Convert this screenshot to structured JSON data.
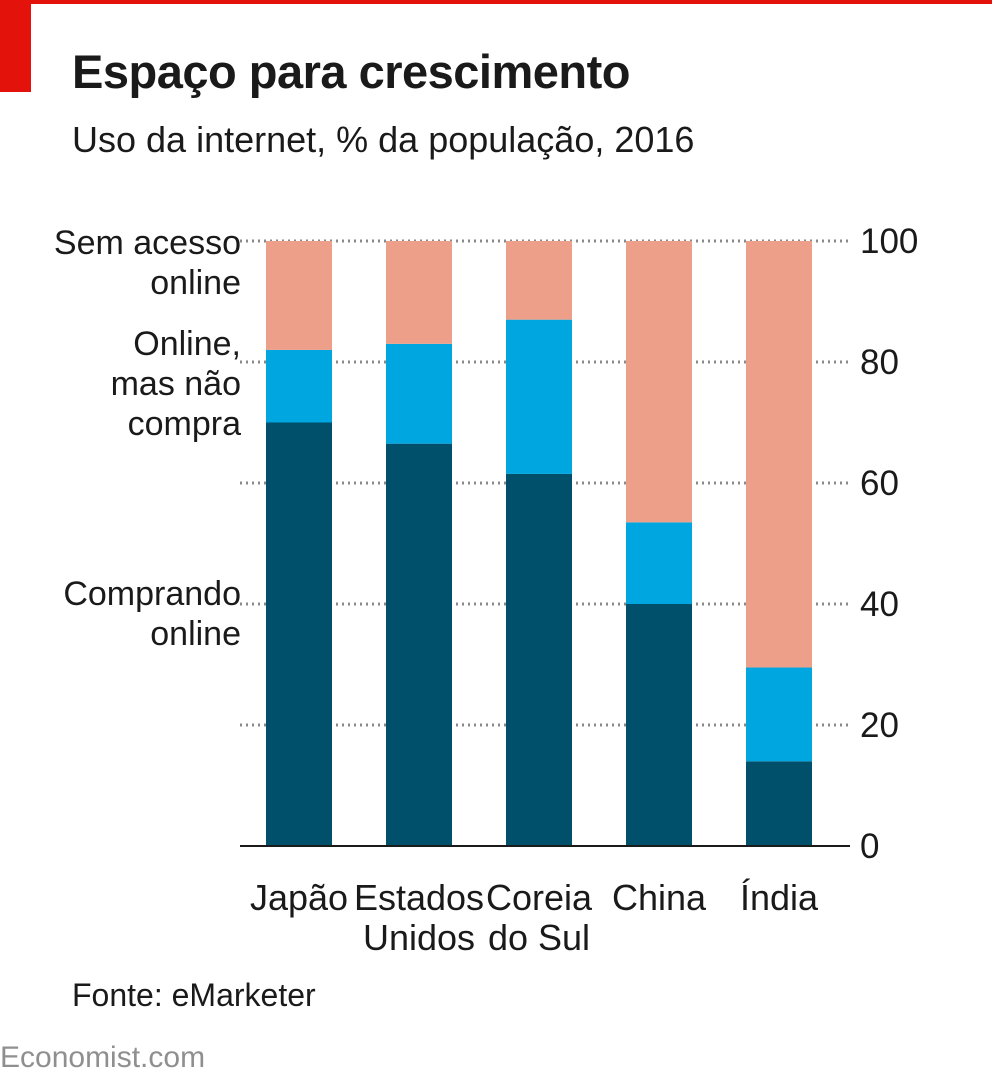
{
  "header": {
    "title": "Espaço para crescimento",
    "subtitle": "Uso da internet, % da população, 2016"
  },
  "chart_data": {
    "type": "bar",
    "stacked": true,
    "categories": [
      [
        "Japão"
      ],
      [
        "Estados",
        "Unidos"
      ],
      [
        "Coreia",
        "do Sul"
      ],
      [
        "China"
      ],
      [
        "Índia"
      ]
    ],
    "series": [
      {
        "name": "Comprando online",
        "label_lines": [
          "Comprando",
          "online"
        ],
        "color": "#004f6b",
        "values": [
          70,
          66.5,
          61.5,
          40,
          14
        ]
      },
      {
        "name": "Online, mas não compra",
        "label_lines": [
          "Online,",
          "mas não",
          "compra"
        ],
        "color": "#00a6df",
        "values": [
          12,
          16.5,
          25.5,
          13.5,
          15.5
        ]
      },
      {
        "name": "Sem acesso online",
        "label_lines": [
          "Sem acesso",
          "online"
        ],
        "color": "#ed9f89",
        "values": [
          18,
          17,
          13,
          46.5,
          70.5
        ]
      }
    ],
    "ylim": [
      0,
      100
    ],
    "yticks": [
      0,
      20,
      40,
      60,
      80,
      100
    ],
    "y_axis_side": "right",
    "grid": true,
    "grid_style": "dotted",
    "legend_placement": "left"
  },
  "footer": {
    "source": "Fonte: eMarketer",
    "brand": "Economist.com"
  },
  "colors": {
    "accent": "#e3120b",
    "text": "#1a1a1a",
    "grid": "#8a8a8a",
    "brand": "#8f8f8f"
  }
}
